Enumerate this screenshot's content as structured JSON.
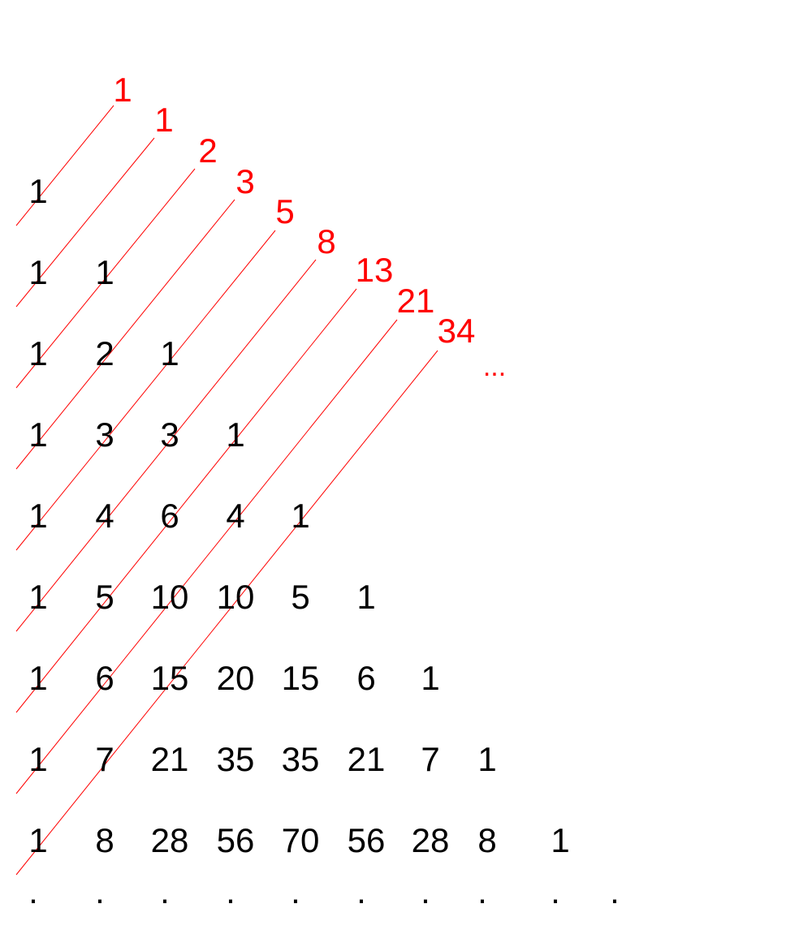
{
  "colors": {
    "background": "#ffffff",
    "triangle_text": "#000000",
    "fibonacci": "#ff0000"
  },
  "pascal_rows": [
    [
      "1"
    ],
    [
      "1",
      "1"
    ],
    [
      "1",
      "2",
      "1"
    ],
    [
      "1",
      "3",
      "3",
      "1"
    ],
    [
      "1",
      "4",
      "6",
      "4",
      "1"
    ],
    [
      "1",
      "5",
      "10",
      "10",
      "5",
      "1"
    ],
    [
      "1",
      "6",
      "15",
      "20",
      "15",
      "6",
      "1"
    ],
    [
      "1",
      "7",
      "21",
      "35",
      "35",
      "21",
      "7",
      "1"
    ],
    [
      "1",
      "8",
      "28",
      "56",
      "70",
      "56",
      "28",
      "8",
      "1"
    ]
  ],
  "continuation_dots": [
    ".",
    ".",
    ".",
    ".",
    ".",
    ".",
    ".",
    ".",
    ".",
    "."
  ],
  "fibonacci_sums": [
    "1",
    "1",
    "2",
    "3",
    "5",
    "8",
    "13",
    "21",
    "34"
  ],
  "fibonacci_continuation": "..."
}
